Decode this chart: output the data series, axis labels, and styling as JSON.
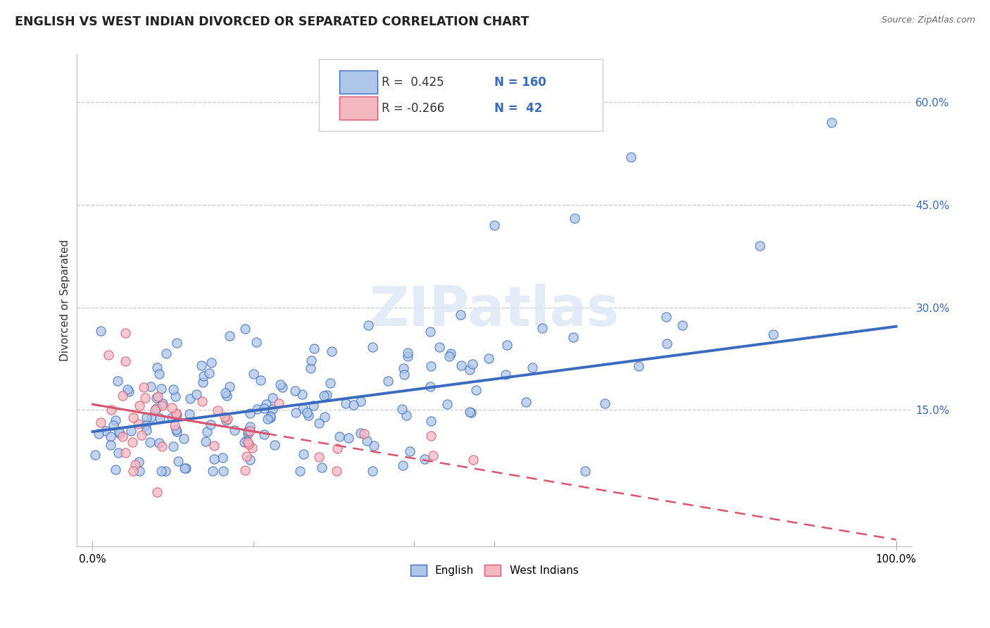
{
  "title": "ENGLISH VS WEST INDIAN DIVORCED OR SEPARATED CORRELATION CHART",
  "source_text": "Source: ZipAtlas.com",
  "ylabel": "Divorced or Separated",
  "watermark": "ZIPatlas",
  "xlim": [
    -0.02,
    1.02
  ],
  "ylim": [
    -0.05,
    0.67
  ],
  "yticks": [
    0.15,
    0.3,
    0.45,
    0.6
  ],
  "ytick_labels": [
    "15.0%",
    "30.0%",
    "45.0%",
    "60.0%"
  ],
  "xticks": [
    0.0,
    1.0
  ],
  "xtick_labels": [
    "0.0%",
    "100.0%"
  ],
  "grid_color": "#c8c8c8",
  "background_color": "#ffffff",
  "english_color": "#aec6e8",
  "english_line_color": "#3a6bbf",
  "westindian_color": "#f4b8c1",
  "westindian_line_color": "#d9546e",
  "english_line_x": [
    0.0,
    1.0
  ],
  "english_line_y": [
    0.118,
    0.272
  ],
  "westindian_line_x": [
    0.0,
    1.0
  ],
  "westindian_line_y": [
    0.158,
    -0.04
  ],
  "title_fontsize": 12.5,
  "axis_label_fontsize": 11,
  "tick_fontsize": 11,
  "legend_fontsize": 12
}
